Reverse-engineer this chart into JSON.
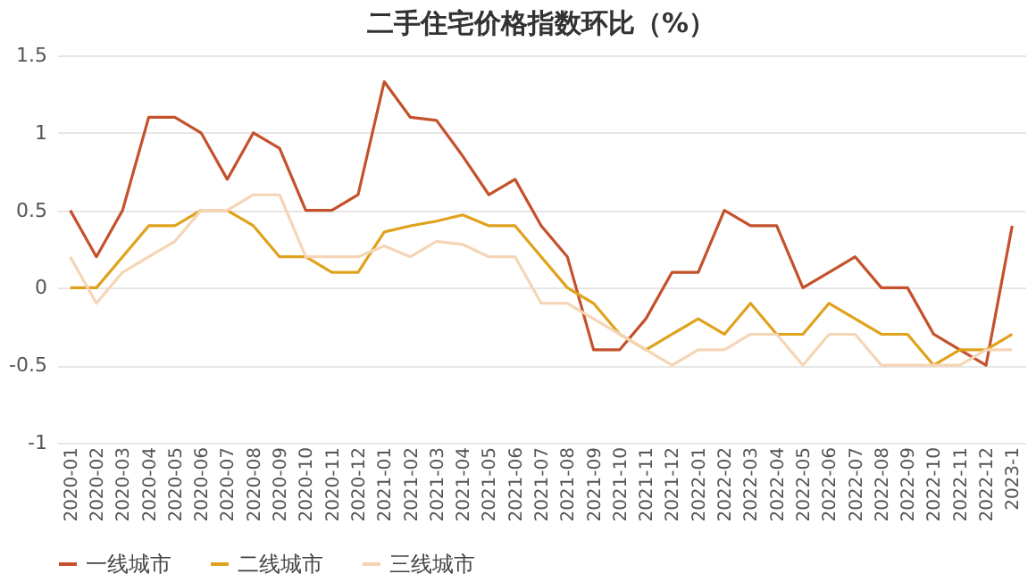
{
  "chart_data": {
    "type": "line",
    "title": "二手住宅价格指数环比（%）",
    "categories": [
      "2020-01",
      "2020-02",
      "2020-03",
      "2020-04",
      "2020-05",
      "2020-06",
      "2020-07",
      "2020-08",
      "2020-09",
      "2020-10",
      "2020-11",
      "2020-12",
      "2021-01",
      "2021-02",
      "2021-03",
      "2021-04",
      "2021-05",
      "2021-06",
      "2021-07",
      "2021-08",
      "2021-09",
      "2021-10",
      "2021-11",
      "2021-12",
      "2022-01",
      "2022-02",
      "2022-03",
      "2022-04",
      "2022-05",
      "2022-06",
      "2022-07",
      "2022-08",
      "2022-09",
      "2022-10",
      "2022-11",
      "2022-12",
      "2023-1"
    ],
    "series": [
      {
        "name": "一线城市",
        "color": "#c4512b",
        "values": [
          0.5,
          0.2,
          0.5,
          1.1,
          1.1,
          1.0,
          0.7,
          1.0,
          0.9,
          0.5,
          0.5,
          0.6,
          1.33,
          1.1,
          1.08,
          0.85,
          0.6,
          0.7,
          0.4,
          0.2,
          -0.4,
          -0.4,
          -0.2,
          0.1,
          0.1,
          0.5,
          0.4,
          0.4,
          0.0,
          0.1,
          0.2,
          0.0,
          0.0,
          -0.3,
          -0.4,
          -0.5,
          0.4
        ]
      },
      {
        "name": "二线城市",
        "color": "#e0a21c",
        "values": [
          0,
          0,
          0.2,
          0.4,
          0.4,
          0.5,
          0.5,
          0.4,
          0.2,
          0.2,
          0.1,
          0.1,
          0.36,
          0.4,
          0.43,
          0.47,
          0.4,
          0.4,
          0.2,
          0.0,
          -0.1,
          -0.3,
          -0.4,
          -0.3,
          -0.2,
          -0.3,
          -0.1,
          -0.3,
          -0.3,
          -0.1,
          -0.2,
          -0.3,
          -0.3,
          -0.5,
          -0.4,
          -0.4,
          -0.3
        ]
      },
      {
        "name": "三线城市",
        "color": "#f5d5b5",
        "values": [
          0.2,
          -0.1,
          0.1,
          0.2,
          0.3,
          0.5,
          0.5,
          0.6,
          0.6,
          0.2,
          0.2,
          0.2,
          0.27,
          0.2,
          0.3,
          0.28,
          0.2,
          0.2,
          -0.1,
          -0.1,
          -0.2,
          -0.3,
          -0.4,
          -0.5,
          -0.4,
          -0.4,
          -0.3,
          -0.3,
          -0.5,
          -0.3,
          -0.3,
          -0.5,
          -0.5,
          -0.5,
          -0.5,
          -0.4,
          -0.4
        ]
      }
    ],
    "ylim": [
      -1,
      1.5
    ],
    "yticks": [
      -1,
      -0.5,
      0,
      0.5,
      1,
      1.5
    ],
    "grid": "y",
    "legend": "bottom"
  }
}
